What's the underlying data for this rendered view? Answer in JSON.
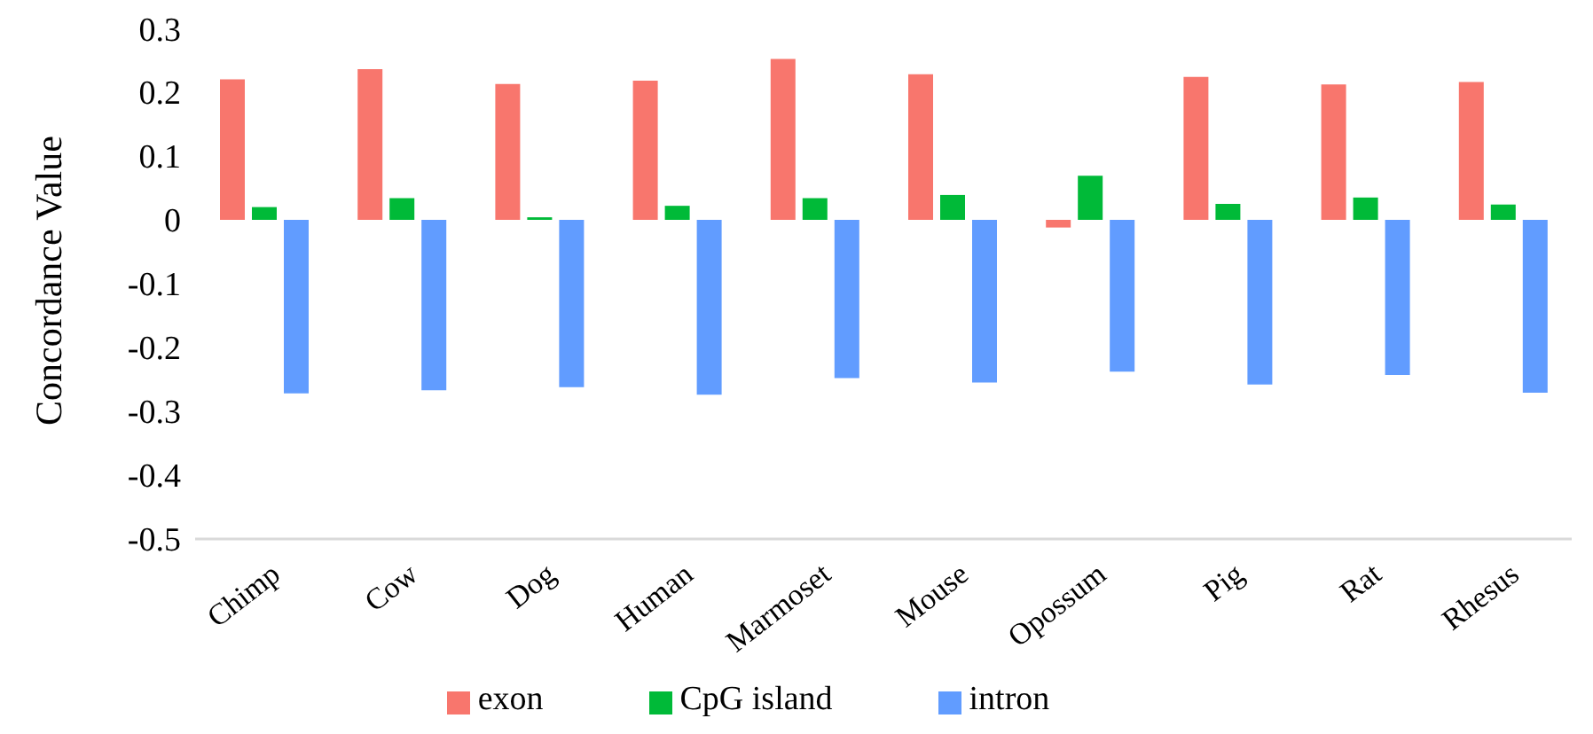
{
  "chart_data": {
    "type": "bar",
    "ylabel": "Concordance Value",
    "categories": [
      "Chimp",
      "Cow",
      "Dog",
      "Human",
      "Marmoset",
      "Mouse",
      "Opossum",
      "Pig",
      "Rat",
      "Rhesus"
    ],
    "series": [
      {
        "name": "exon",
        "color": "#f8766d",
        "values": [
          0.22,
          0.236,
          0.213,
          0.218,
          0.252,
          0.228,
          -0.012,
          0.224,
          0.212,
          0.216
        ]
      },
      {
        "name": "CpG island",
        "color": "#00ba38",
        "values": [
          0.02,
          0.034,
          0.004,
          0.022,
          0.034,
          0.039,
          0.069,
          0.025,
          0.035,
          0.024
        ]
      },
      {
        "name": "intron",
        "color": "#619cff",
        "values": [
          -0.272,
          -0.267,
          -0.262,
          -0.274,
          -0.248,
          -0.255,
          -0.238,
          -0.258,
          -0.243,
          -0.271
        ]
      }
    ],
    "ylim": [
      -0.5,
      0.3
    ],
    "yticks": [
      -0.5,
      -0.4,
      -0.3,
      -0.2,
      -0.1,
      0,
      0.1,
      0.2,
      0.3
    ],
    "grid": false,
    "legend": "bottom"
  }
}
